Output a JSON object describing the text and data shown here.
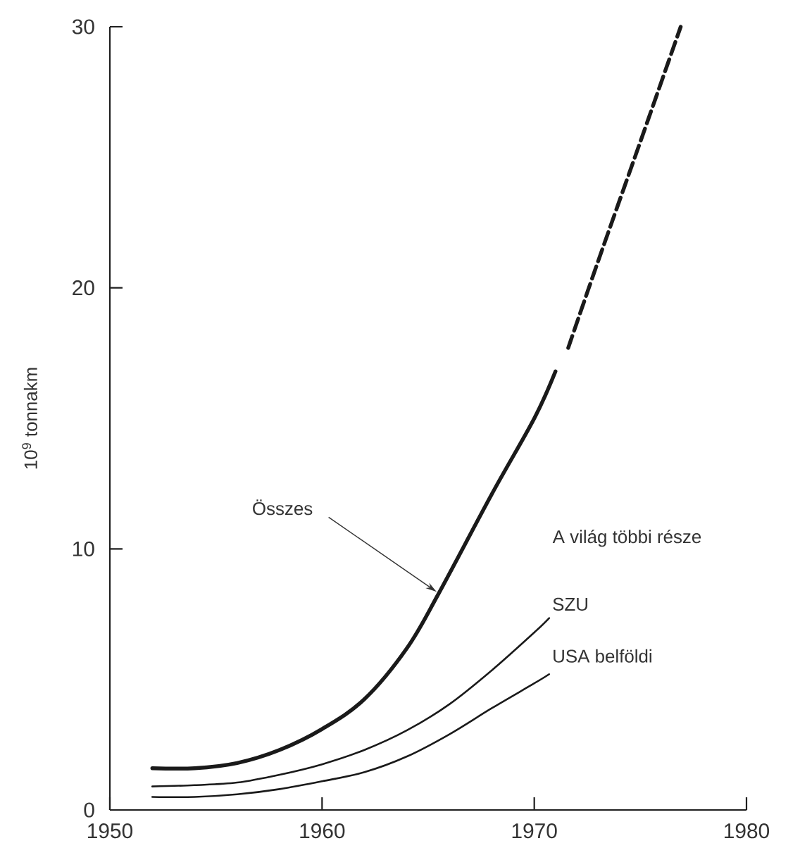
{
  "chart_data": {
    "type": "line",
    "ylabel": "10$^{9}$ tonnakm",
    "xlim": [
      1950,
      1980
    ],
    "xticks": [
      1950,
      1960,
      1970,
      1980
    ],
    "ylim": [
      0,
      30
    ],
    "yticks": [
      0,
      10,
      20,
      30
    ],
    "series": [
      {
        "name": "USA belföldi",
        "color": "#1a1a1a",
        "x": [
          1952,
          1954,
          1956,
          1958,
          1960,
          1962,
          1964,
          1966,
          1968,
          1970,
          1970.7
        ],
        "values": [
          0.5,
          0.5,
          0.6,
          0.8,
          1.1,
          1.45,
          2.05,
          2.9,
          3.9,
          4.85,
          5.2
        ]
      },
      {
        "name": "SZU",
        "color": "#1a1a1a",
        "x": [
          1952,
          1954,
          1956,
          1958,
          1960,
          1962,
          1964,
          1966,
          1968,
          1970,
          1970.7
        ],
        "values": [
          0.9,
          0.95,
          1.05,
          1.35,
          1.75,
          2.3,
          3.05,
          4.05,
          5.35,
          6.8,
          7.35
        ]
      },
      {
        "color": "#1a1a1a",
        "x": [
          1952,
          1954,
          1956,
          1958,
          1960,
          1962,
          1964,
          1965.5,
          1968,
          1970,
          1971
        ],
        "values": [
          1.6,
          1.6,
          1.8,
          2.3,
          3.1,
          4.25,
          6.2,
          8.3,
          12.1,
          15.0,
          16.8
        ]
      },
      {
        "color": "#1a1a1a",
        "line_style": "dashed",
        "x": [
          1971.6,
          1973,
          1975,
          1976.9
        ],
        "values": [
          17.7,
          21.0,
          25.6,
          30.0
        ]
      }
    ],
    "annotations": [
      "A világ többi része",
      {
        "text": "Összes",
        "x": 1965.5,
        "y": 8.3
      }
    ]
  }
}
